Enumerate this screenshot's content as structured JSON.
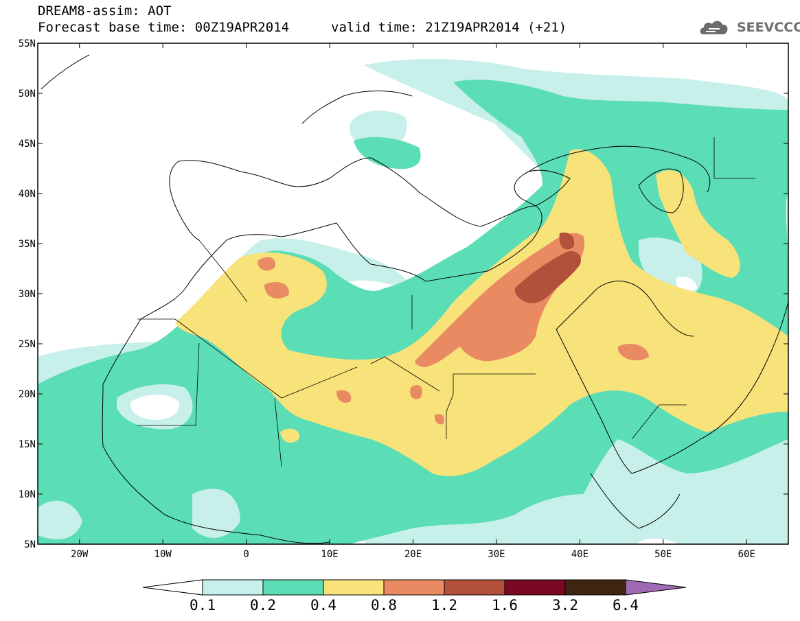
{
  "header": {
    "title": "DREAM8-assim: AOT",
    "base_time": "Forecast base time: 00Z19APR2014",
    "valid_time": "valid time: 21Z19APR2014 (+21)",
    "logo_text": "SEEVCCC"
  },
  "map": {
    "lon_range": [
      -25,
      65
    ],
    "lat_range": [
      5,
      55
    ],
    "lon_ticks": [
      {
        "value": -20,
        "label": "20W"
      },
      {
        "value": -10,
        "label": "10W"
      },
      {
        "value": 0,
        "label": "0"
      },
      {
        "value": 10,
        "label": "10E"
      },
      {
        "value": 20,
        "label": "20E"
      },
      {
        "value": 30,
        "label": "30E"
      },
      {
        "value": 40,
        "label": "40E"
      },
      {
        "value": 50,
        "label": "50E"
      },
      {
        "value": 60,
        "label": "60E"
      }
    ],
    "lat_ticks": [
      {
        "value": 55,
        "label": "55N"
      },
      {
        "value": 50,
        "label": "50N"
      },
      {
        "value": 45,
        "label": "45N"
      },
      {
        "value": 40,
        "label": "40N"
      },
      {
        "value": 35,
        "label": "35N"
      },
      {
        "value": 30,
        "label": "30N"
      },
      {
        "value": 25,
        "label": "25N"
      },
      {
        "value": 20,
        "label": "20N"
      },
      {
        "value": 15,
        "label": "15N"
      },
      {
        "value": 10,
        "label": "10N"
      },
      {
        "value": 5,
        "label": "5N"
      }
    ]
  },
  "colorbar": {
    "labels": [
      "0.1",
      "0.2",
      "0.4",
      "0.8",
      "1.2",
      "1.6",
      "3.2",
      "6.4"
    ],
    "colors": {
      "below": "#ffffff",
      "bins": [
        "#c7f0ea",
        "#5bddb6",
        "#f8e27a",
        "#e98a62",
        "#b2503c",
        "#7a0a23",
        "#3e2613"
      ],
      "above": "#9e6ab4"
    }
  }
}
